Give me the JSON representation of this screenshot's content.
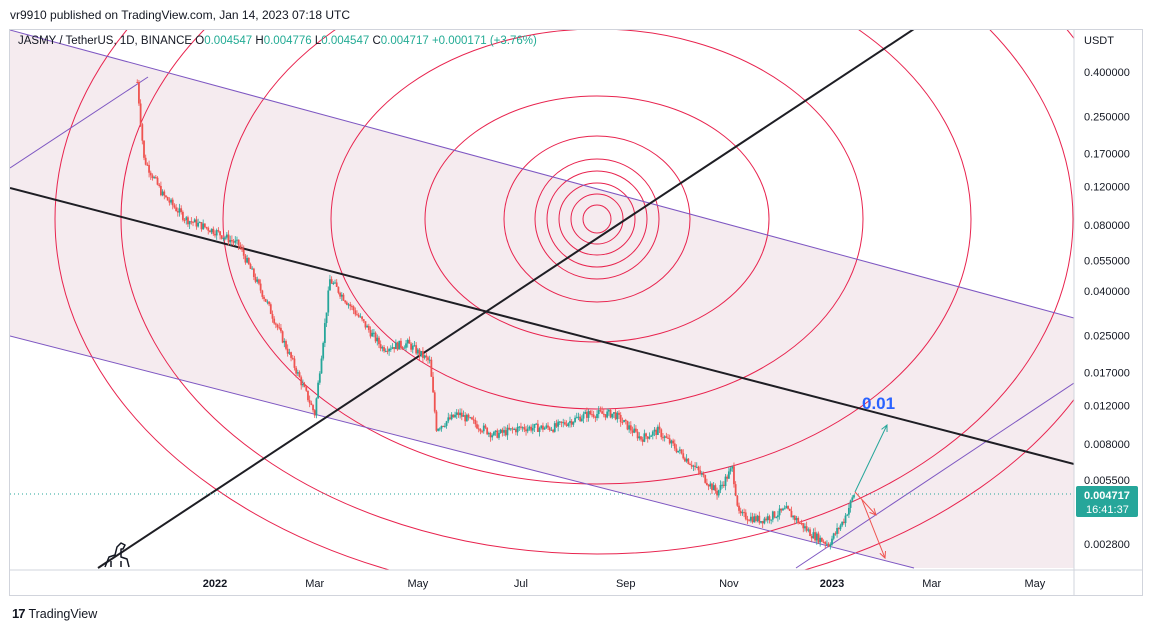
{
  "publisher_line": "vr9910 published on TradingView.com, Jan 14, 2023 07:18 UTC",
  "legend": {
    "symbol": "JASMY / TetherUS, 1D, BINANCE",
    "open_label": "O",
    "open": "0.004547",
    "high_label": "H",
    "high": "0.004776",
    "low_label": "L",
    "low": "0.004547",
    "close_label": "C",
    "close": "0.004717",
    "change": "+0.000171 (+3.76%)"
  },
  "footer": {
    "logo": "17",
    "brand": "TradingView"
  },
  "annotation_text": "0.01",
  "colors": {
    "candle_up": "#26a69a",
    "candle_down": "#ef5350",
    "circles": "#e8234e",
    "channel": "#7e57c2",
    "channel_fill": "#f1e4ea",
    "trend_lines": "#1e1e24",
    "annotation": "#2962ff",
    "price_badge": "#26a69a"
  },
  "chart_data": {
    "type": "candlestick",
    "y_axis_unit": "USDT",
    "y_scale": "log",
    "y_ticks": [
      "0.400000",
      "0.250000",
      "0.170000",
      "0.120000",
      "0.080000",
      "0.055000",
      "0.040000",
      "0.025000",
      "0.017000",
      "0.012000",
      "0.008000",
      "0.005500",
      "0.002800"
    ],
    "x_ticks": [
      "2022",
      "Mar",
      "May",
      "Jul",
      "Sep",
      "Nov",
      "2023",
      "Mar",
      "May"
    ],
    "last_price": "0.004717",
    "countdown": "16:41:37",
    "approx_close_path": [
      [
        "2021-11-16",
        0.36
      ],
      [
        "2021-11-20",
        0.16
      ],
      [
        "2021-12-01",
        0.11
      ],
      [
        "2021-12-15",
        0.085
      ],
      [
        "2022-01-01",
        0.075
      ],
      [
        "2022-01-15",
        0.065
      ],
      [
        "2022-02-01",
        0.035
      ],
      [
        "2022-02-20",
        0.016
      ],
      [
        "2022-03-01",
        0.011
      ],
      [
        "2022-03-10",
        0.045
      ],
      [
        "2022-03-25",
        0.032
      ],
      [
        "2022-04-10",
        0.022
      ],
      [
        "2022-04-25",
        0.023
      ],
      [
        "2022-05-08",
        0.019
      ],
      [
        "2022-05-12",
        0.0095
      ],
      [
        "2022-05-25",
        0.011
      ],
      [
        "2022-06-15",
        0.0088
      ],
      [
        "2022-07-01",
        0.0095
      ],
      [
        "2022-07-20",
        0.0095
      ],
      [
        "2022-08-10",
        0.011
      ],
      [
        "2022-08-25",
        0.011
      ],
      [
        "2022-09-10",
        0.0085
      ],
      [
        "2022-09-20",
        0.0092
      ],
      [
        "2022-10-10",
        0.0065
      ],
      [
        "2022-10-25",
        0.0048
      ],
      [
        "2022-11-03",
        0.0062
      ],
      [
        "2022-11-07",
        0.0038
      ],
      [
        "2022-11-20",
        0.0036
      ],
      [
        "2022-12-05",
        0.004
      ],
      [
        "2022-12-20",
        0.0031
      ],
      [
        "2022-12-30",
        0.0028
      ],
      [
        "2023-01-08",
        0.0036
      ],
      [
        "2023-01-14",
        0.004717
      ]
    ]
  }
}
